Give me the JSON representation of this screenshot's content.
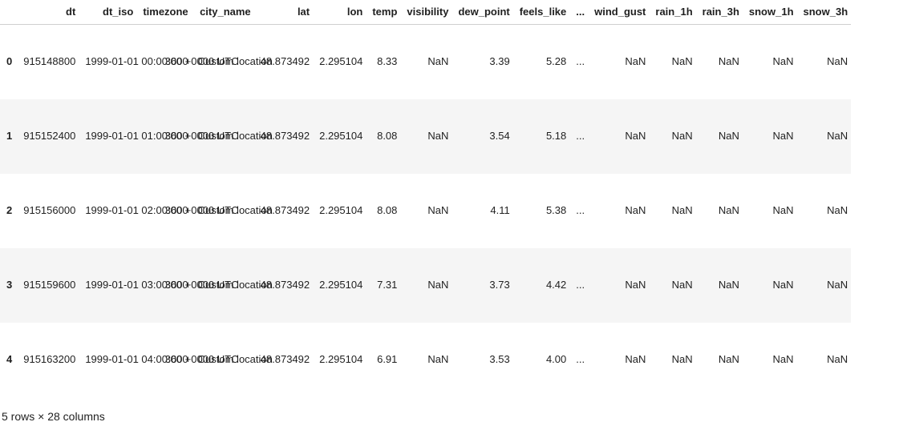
{
  "columns": [
    "",
    "dt",
    "dt_iso",
    "timezone",
    "city_name",
    "lat",
    "lon",
    "temp",
    "visibility",
    "dew_point",
    "feels_like",
    "...",
    "wind_gust",
    "rain_1h",
    "rain_3h",
    "snow_1h",
    "snow_3h"
  ],
  "rows": [
    {
      "index": "0",
      "dt": "915148800",
      "dt_iso": "1999-01-01 00:00:00 +0000 UTC",
      "timezone": "3600",
      "city_name": "Custom location",
      "lat": "48.873492",
      "lon": "2.295104",
      "temp": "8.33",
      "visibility": "NaN",
      "dew_point": "3.39",
      "feels_like": "5.28",
      "ellipsis": "...",
      "wind_gust": "NaN",
      "rain_1h": "NaN",
      "rain_3h": "NaN",
      "snow_1h": "NaN",
      "snow_3h": "NaN"
    },
    {
      "index": "1",
      "dt": "915152400",
      "dt_iso": "1999-01-01 01:00:00 +0000 UTC",
      "timezone": "3600",
      "city_name": "Custom location",
      "lat": "48.873492",
      "lon": "2.295104",
      "temp": "8.08",
      "visibility": "NaN",
      "dew_point": "3.54",
      "feels_like": "5.18",
      "ellipsis": "...",
      "wind_gust": "NaN",
      "rain_1h": "NaN",
      "rain_3h": "NaN",
      "snow_1h": "NaN",
      "snow_3h": "NaN"
    },
    {
      "index": "2",
      "dt": "915156000",
      "dt_iso": "1999-01-01 02:00:00 +0000 UTC",
      "timezone": "3600",
      "city_name": "Custom location",
      "lat": "48.873492",
      "lon": "2.295104",
      "temp": "8.08",
      "visibility": "NaN",
      "dew_point": "4.11",
      "feels_like": "5.38",
      "ellipsis": "...",
      "wind_gust": "NaN",
      "rain_1h": "NaN",
      "rain_3h": "NaN",
      "snow_1h": "NaN",
      "snow_3h": "NaN"
    },
    {
      "index": "3",
      "dt": "915159600",
      "dt_iso": "1999-01-01 03:00:00 +0000 UTC",
      "timezone": "3600",
      "city_name": "Custom location",
      "lat": "48.873492",
      "lon": "2.295104",
      "temp": "7.31",
      "visibility": "NaN",
      "dew_point": "3.73",
      "feels_like": "4.42",
      "ellipsis": "...",
      "wind_gust": "NaN",
      "rain_1h": "NaN",
      "rain_3h": "NaN",
      "snow_1h": "NaN",
      "snow_3h": "NaN"
    },
    {
      "index": "4",
      "dt": "915163200",
      "dt_iso": "1999-01-01 04:00:00 +0000 UTC",
      "timezone": "3600",
      "city_name": "Custom location",
      "lat": "48.873492",
      "lon": "2.295104",
      "temp": "6.91",
      "visibility": "NaN",
      "dew_point": "3.53",
      "feels_like": "4.00",
      "ellipsis": "...",
      "wind_gust": "NaN",
      "rain_1h": "NaN",
      "rain_3h": "NaN",
      "snow_1h": "NaN",
      "snow_3h": "NaN"
    }
  ],
  "footer": "5 rows × 28 columns"
}
